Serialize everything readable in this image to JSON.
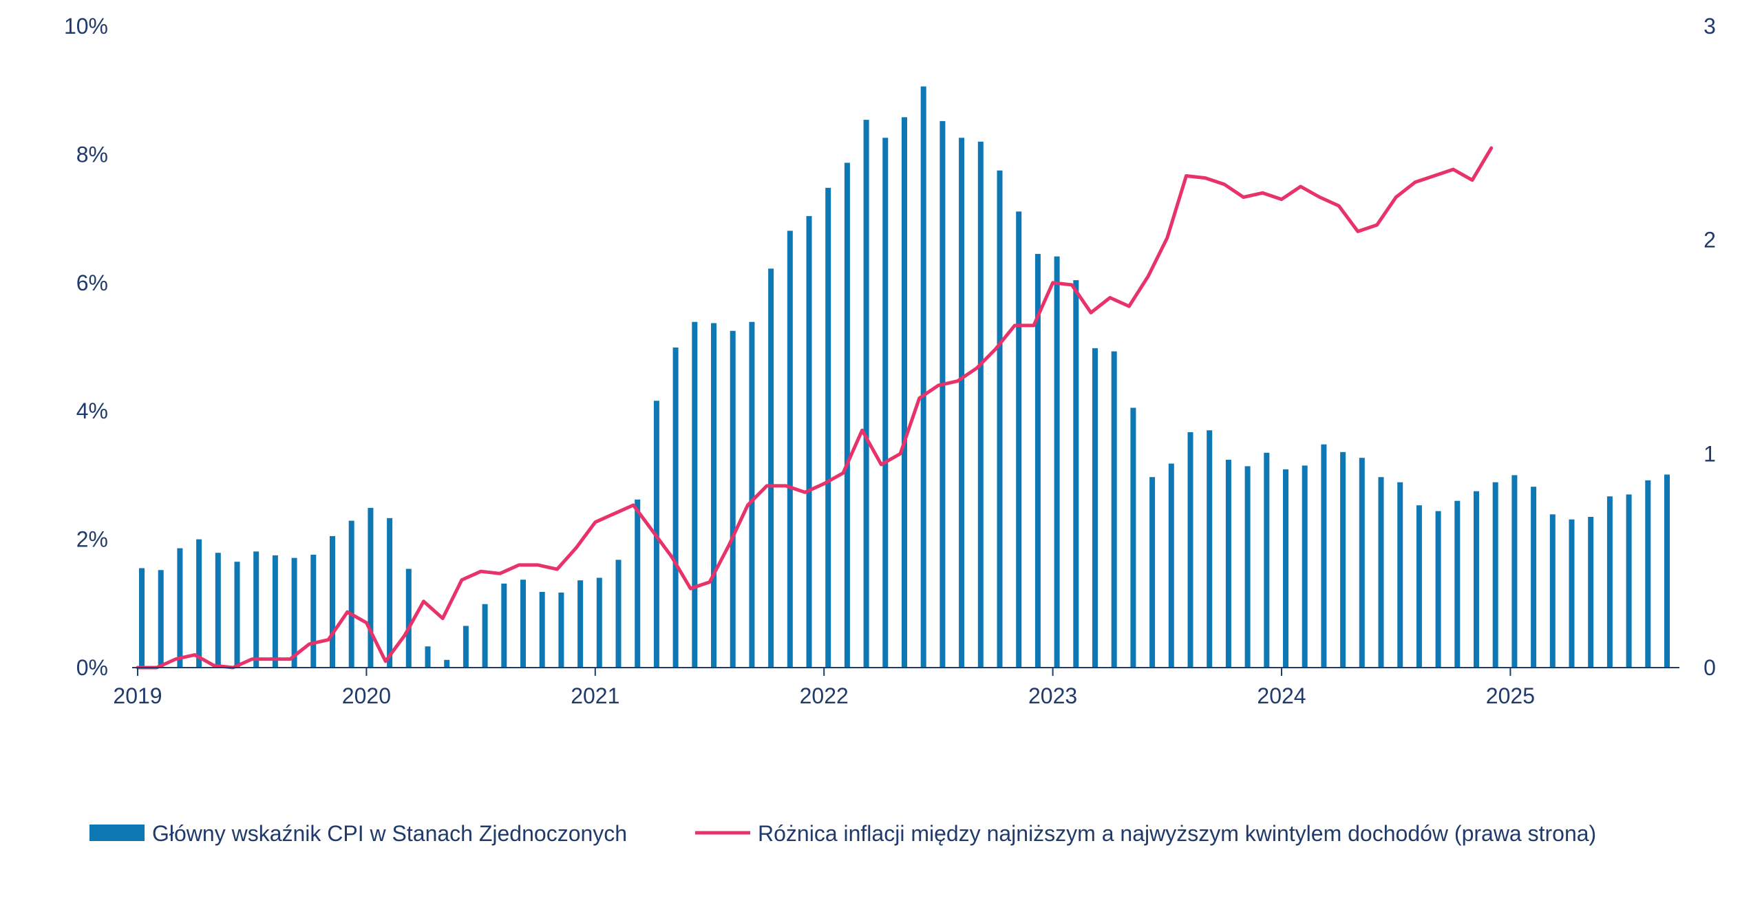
{
  "chart_data": {
    "type": "bar",
    "title": "",
    "x_ticks": [
      "2019",
      "2020",
      "2021",
      "2022",
      "2023",
      "2024",
      "2025"
    ],
    "y_left": {
      "ticks": [
        "0%",
        "2%",
        "4%",
        "6%",
        "8%",
        "10%"
      ],
      "range": [
        0,
        10
      ]
    },
    "y_right": {
      "ticks": [
        "0",
        "1",
        "2",
        "3"
      ],
      "range": [
        0,
        3
      ]
    },
    "grid": false,
    "legend_position": "bottom",
    "x_start": "2019-01",
    "series": [
      {
        "name": "Główny wskaźnik CPI w Stanach Zjednoczonych",
        "type": "bar",
        "axis": "left",
        "color": "#0e78b4",
        "values": [
          1.55,
          1.52,
          1.86,
          2.0,
          1.79,
          1.65,
          1.81,
          1.75,
          1.71,
          1.76,
          2.05,
          2.29,
          2.49,
          2.33,
          1.54,
          0.33,
          0.12,
          0.65,
          0.99,
          1.31,
          1.37,
          1.18,
          1.17,
          1.36,
          1.4,
          1.68,
          2.62,
          4.16,
          4.99,
          5.39,
          5.37,
          5.25,
          5.39,
          6.22,
          6.81,
          7.04,
          7.48,
          7.87,
          8.54,
          8.26,
          8.58,
          9.06,
          8.52,
          8.26,
          8.2,
          7.75,
          7.11,
          6.45,
          6.41,
          6.04,
          4.98,
          4.93,
          4.05,
          2.97,
          3.18,
          3.67,
          3.7,
          3.24,
          3.14,
          3.35,
          3.09,
          3.15,
          3.48,
          3.36,
          3.27,
          2.97,
          2.89,
          2.53,
          2.44,
          2.6,
          2.75,
          2.89,
          3.0,
          2.82,
          2.39,
          2.31,
          2.35,
          2.67,
          2.7,
          2.92,
          3.01
        ],
        "last_x": "2025-09"
      },
      {
        "name": "Różnica inflacji między najniższym a najwyższym kwintylem dochodów (prawa strona)",
        "type": "line",
        "axis": "right",
        "color": "#e8336a",
        "values": [
          0.0,
          0.0,
          0.04,
          0.06,
          0.01,
          0.0,
          0.04,
          0.04,
          0.04,
          0.11,
          0.13,
          0.26,
          0.21,
          0.03,
          0.15,
          0.31,
          0.23,
          0.41,
          0.45,
          0.44,
          0.48,
          0.48,
          0.46,
          0.56,
          0.68,
          0.72,
          0.76,
          0.64,
          0.52,
          0.37,
          0.4,
          0.57,
          0.76,
          0.85,
          0.85,
          0.82,
          0.86,
          0.91,
          1.11,
          0.95,
          1.0,
          1.26,
          1.32,
          1.34,
          1.4,
          1.49,
          1.6,
          1.6,
          1.8,
          1.79,
          1.66,
          1.73,
          1.69,
          1.83,
          2.01,
          2.3,
          2.29,
          2.26,
          2.2,
          2.22,
          2.19,
          2.25,
          2.2,
          2.16,
          2.04,
          2.07,
          2.2,
          2.27,
          2.3,
          2.33,
          2.28,
          2.43
        ],
        "last_x": "2024-12"
      }
    ]
  }
}
